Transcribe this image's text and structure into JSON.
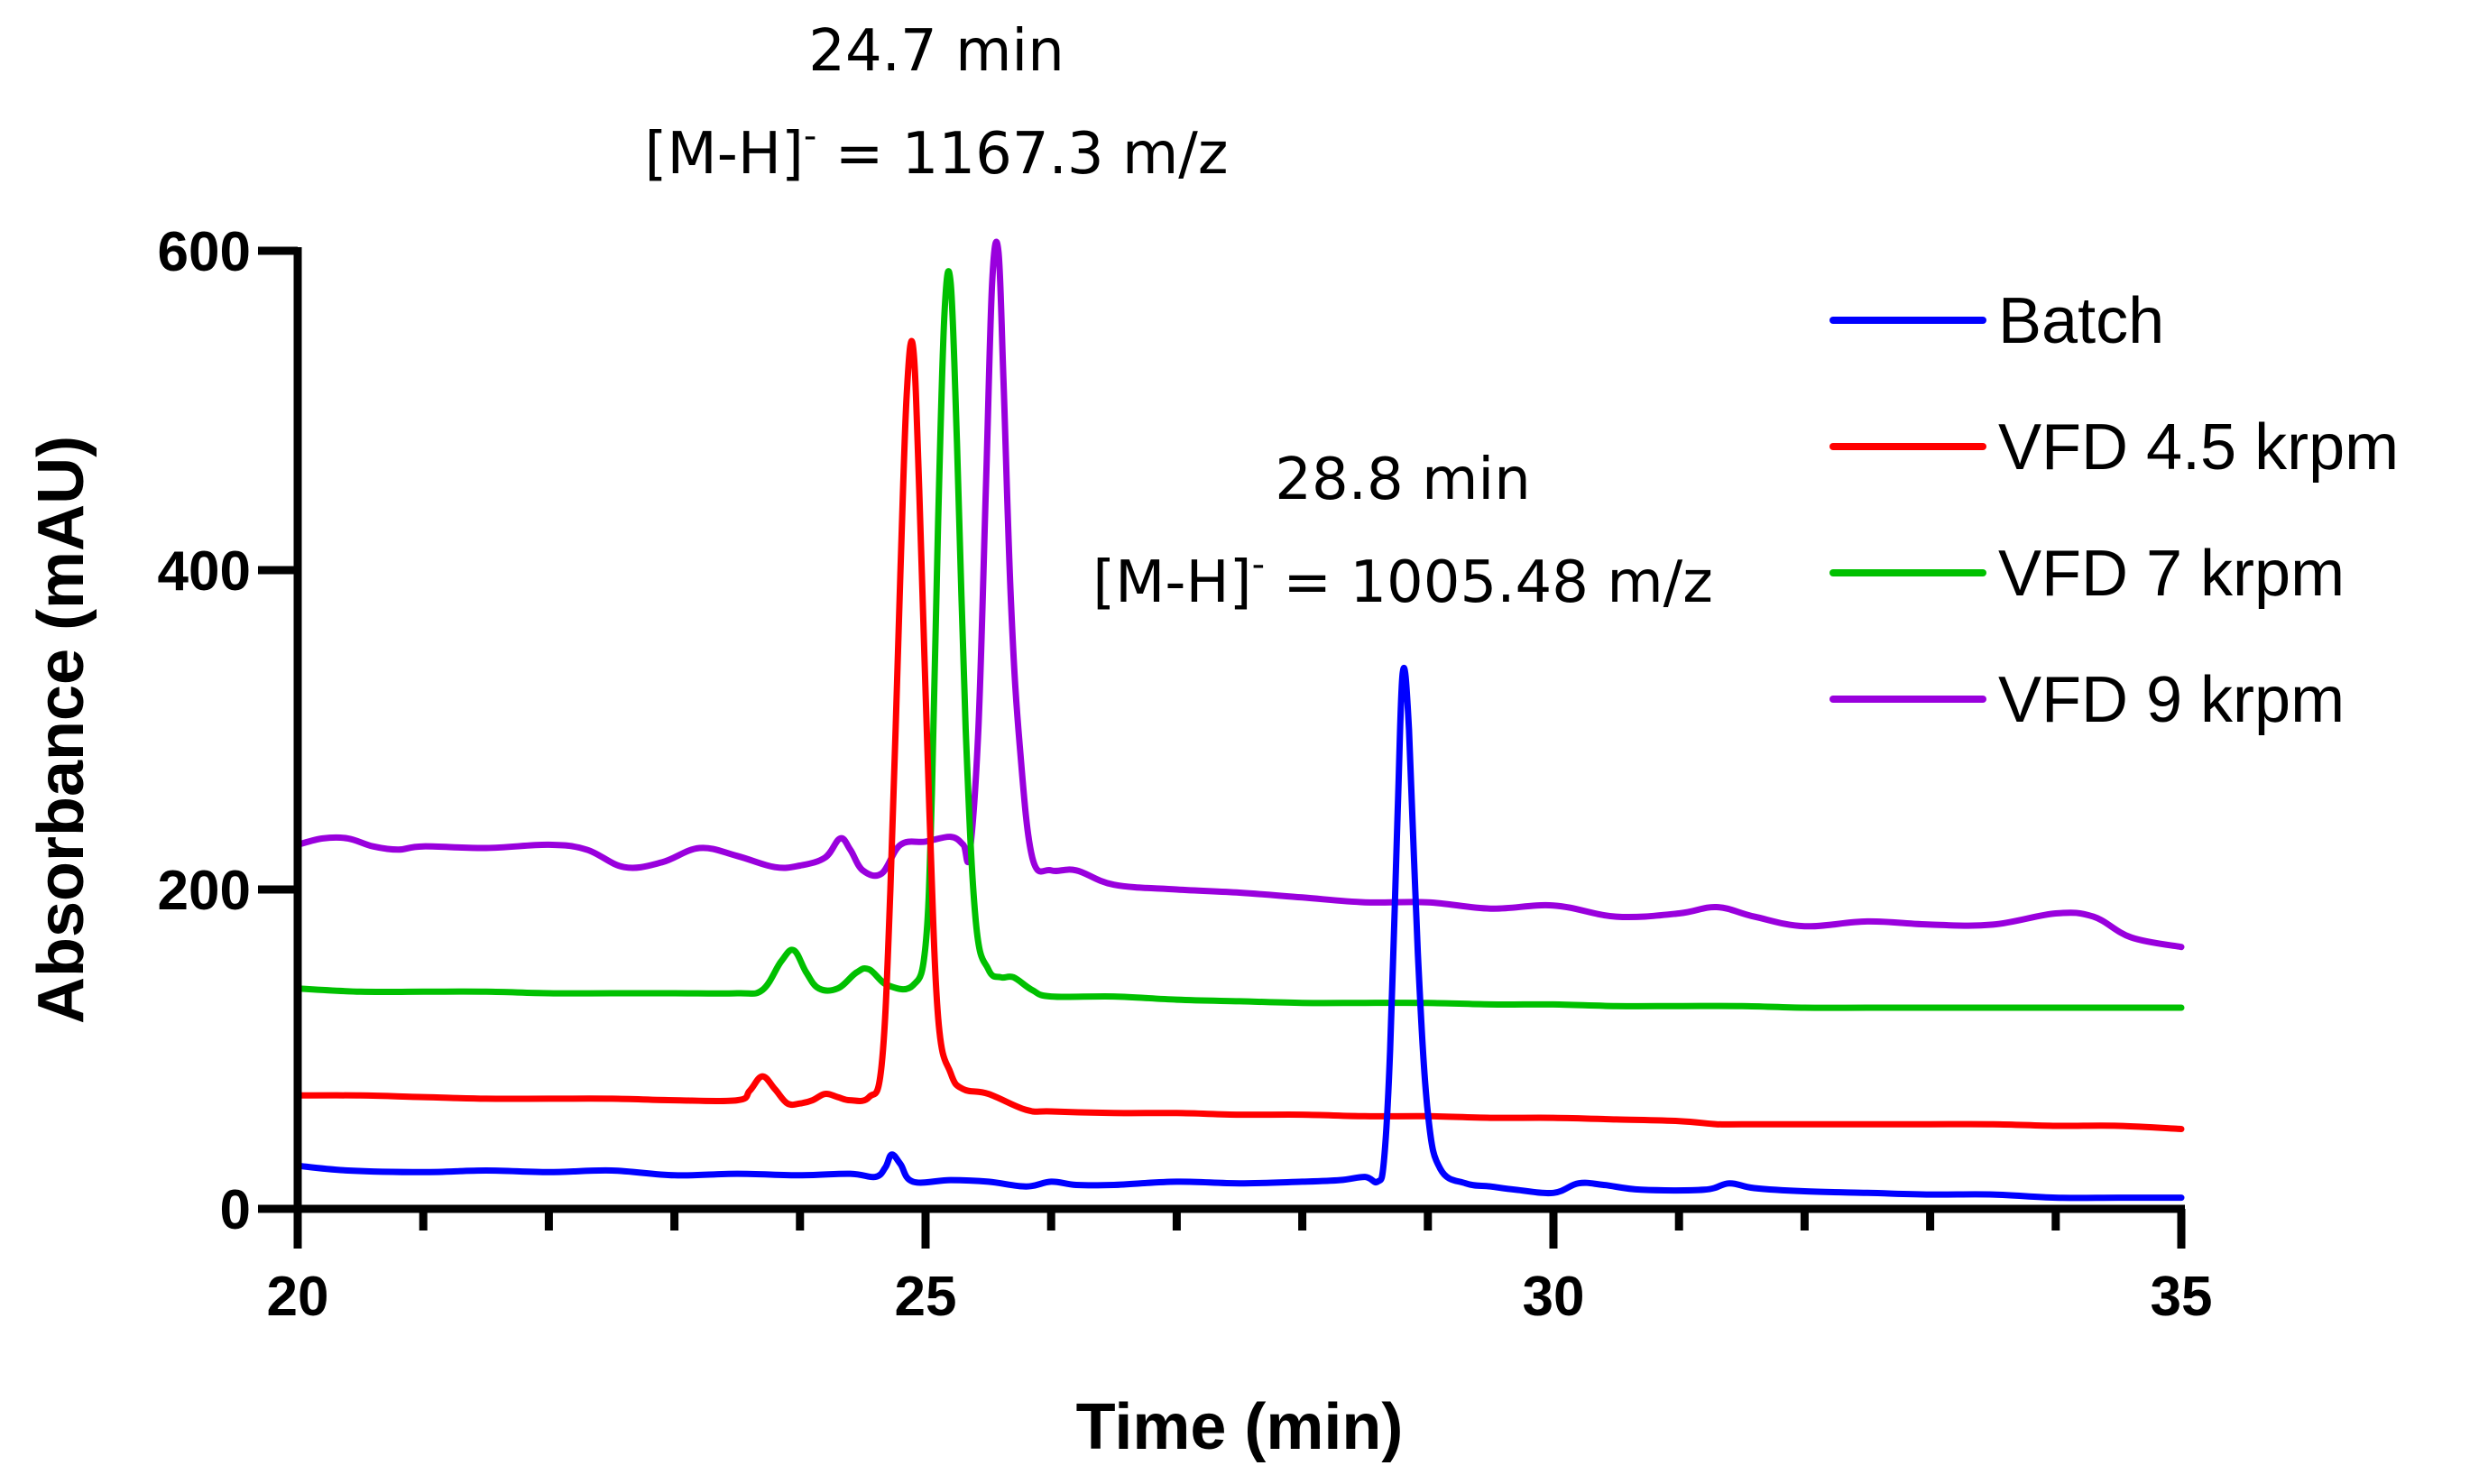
{
  "chart_data": {
    "type": "line",
    "title": "",
    "xlabel": "Time (min)",
    "ylabel": "Absorbance (mAU)",
    "xlim": [
      20,
      35
    ],
    "ylim": [
      0,
      600
    ],
    "x_ticks": [
      20,
      25,
      30,
      35
    ],
    "x_tick_labels": [
      "20",
      "25",
      "30",
      "35"
    ],
    "y_ticks": [
      0,
      200,
      400,
      600
    ],
    "y_tick_labels": [
      "0",
      "200",
      "400",
      "600"
    ],
    "x_minor_step": 1,
    "grid": false,
    "legend_position": "top-right",
    "series": [
      {
        "name": "Batch",
        "color": "#0000ff",
        "points": [
          [
            20,
            27
          ],
          [
            20.4,
            24
          ],
          [
            21,
            23
          ],
          [
            21.5,
            24
          ],
          [
            22,
            23
          ],
          [
            22.5,
            24
          ],
          [
            23,
            21
          ],
          [
            23.5,
            22
          ],
          [
            24,
            21
          ],
          [
            24.4,
            22
          ],
          [
            24.6,
            20
          ],
          [
            24.68,
            26
          ],
          [
            24.73,
            34
          ],
          [
            24.8,
            28
          ],
          [
            24.9,
            17
          ],
          [
            25.2,
            18
          ],
          [
            25.5,
            17
          ],
          [
            25.8,
            14
          ],
          [
            26,
            17
          ],
          [
            26.2,
            15
          ],
          [
            26.5,
            15
          ],
          [
            27,
            17
          ],
          [
            27.5,
            16
          ],
          [
            28,
            17
          ],
          [
            28.3,
            18
          ],
          [
            28.5,
            20
          ],
          [
            28.6,
            17
          ],
          [
            28.65,
            30
          ],
          [
            28.7,
            100
          ],
          [
            28.76,
            250
          ],
          [
            28.8,
            336
          ],
          [
            28.85,
            300
          ],
          [
            28.92,
            160
          ],
          [
            29,
            60
          ],
          [
            29.1,
            25
          ],
          [
            29.3,
            16
          ],
          [
            29.5,
            14
          ],
          [
            29.7,
            12
          ],
          [
            30,
            10
          ],
          [
            30.2,
            16
          ],
          [
            30.4,
            15
          ],
          [
            30.7,
            12
          ],
          [
            31.2,
            12
          ],
          [
            31.4,
            16
          ],
          [
            31.6,
            13
          ],
          [
            32,
            11
          ],
          [
            32.5,
            10
          ],
          [
            33,
            9
          ],
          [
            33.5,
            9
          ],
          [
            34,
            7
          ],
          [
            34.5,
            7
          ],
          [
            35,
            7
          ]
        ]
      },
      {
        "name": "VFD 4.5 krpm",
        "color": "#ff0000",
        "points": [
          [
            20,
            71
          ],
          [
            20.5,
            71
          ],
          [
            21,
            70
          ],
          [
            21.5,
            69
          ],
          [
            22,
            69
          ],
          [
            22.5,
            69
          ],
          [
            23,
            68
          ],
          [
            23.5,
            68
          ],
          [
            23.6,
            74
          ],
          [
            23.7,
            83
          ],
          [
            23.8,
            75
          ],
          [
            23.9,
            66
          ],
          [
            24,
            66
          ],
          [
            24.1,
            68
          ],
          [
            24.2,
            72
          ],
          [
            24.3,
            70
          ],
          [
            24.4,
            68
          ],
          [
            24.55,
            70
          ],
          [
            24.65,
            90
          ],
          [
            24.72,
            200
          ],
          [
            24.8,
            400
          ],
          [
            24.85,
            510
          ],
          [
            24.9,
            540
          ],
          [
            24.95,
            450
          ],
          [
            25.03,
            250
          ],
          [
            25.1,
            120
          ],
          [
            25.2,
            85
          ],
          [
            25.3,
            75
          ],
          [
            25.5,
            72
          ],
          [
            25.8,
            62
          ],
          [
            26,
            61
          ],
          [
            26.5,
            60
          ],
          [
            27,
            60
          ],
          [
            27.5,
            59
          ],
          [
            28,
            59
          ],
          [
            28.5,
            58
          ],
          [
            29,
            58
          ],
          [
            29.5,
            57
          ],
          [
            30,
            57
          ],
          [
            30.5,
            56
          ],
          [
            31,
            55
          ],
          [
            31.3,
            53
          ],
          [
            31.5,
            53
          ],
          [
            32,
            53
          ],
          [
            32.5,
            53
          ],
          [
            33,
            53
          ],
          [
            33.5,
            53
          ],
          [
            34,
            52
          ],
          [
            34.5,
            52
          ],
          [
            35,
            50
          ]
        ]
      },
      {
        "name": "VFD 7 krpm",
        "color": "#00c000",
        "points": [
          [
            20,
            138
          ],
          [
            20.5,
            136
          ],
          [
            21,
            136
          ],
          [
            21.5,
            136
          ],
          [
            22,
            135
          ],
          [
            22.5,
            135
          ],
          [
            23,
            135
          ],
          [
            23.5,
            135
          ],
          [
            23.7,
            137
          ],
          [
            23.85,
            155
          ],
          [
            23.95,
            162
          ],
          [
            24.05,
            148
          ],
          [
            24.15,
            138
          ],
          [
            24.3,
            138
          ],
          [
            24.45,
            148
          ],
          [
            24.55,
            150
          ],
          [
            24.7,
            140
          ],
          [
            24.9,
            140
          ],
          [
            25.0,
            165
          ],
          [
            25.05,
            260
          ],
          [
            25.1,
            430
          ],
          [
            25.15,
            560
          ],
          [
            25.2,
            580
          ],
          [
            25.25,
            480
          ],
          [
            25.32,
            300
          ],
          [
            25.4,
            180
          ],
          [
            25.5,
            150
          ],
          [
            25.6,
            145
          ],
          [
            25.7,
            145
          ],
          [
            25.85,
            137
          ],
          [
            26,
            133
          ],
          [
            26.5,
            133
          ],
          [
            27,
            131
          ],
          [
            27.5,
            130
          ],
          [
            28,
            129
          ],
          [
            28.5,
            129
          ],
          [
            29,
            129
          ],
          [
            29.5,
            128
          ],
          [
            30,
            128
          ],
          [
            30.5,
            127
          ],
          [
            31,
            127
          ],
          [
            31.5,
            127
          ],
          [
            32,
            126
          ],
          [
            32.5,
            126
          ],
          [
            33,
            126
          ],
          [
            33.5,
            126
          ],
          [
            34,
            126
          ],
          [
            34.5,
            126
          ],
          [
            35,
            126
          ]
        ]
      },
      {
        "name": "VFD 9 krpm",
        "color": "#9900dd",
        "points": [
          [
            20,
            228
          ],
          [
            20.2,
            232
          ],
          [
            20.4,
            232
          ],
          [
            20.6,
            227
          ],
          [
            20.8,
            225
          ],
          [
            21,
            227
          ],
          [
            21.5,
            226
          ],
          [
            22,
            228
          ],
          [
            22.3,
            225
          ],
          [
            22.6,
            214
          ],
          [
            22.9,
            217
          ],
          [
            23.2,
            226
          ],
          [
            23.5,
            221
          ],
          [
            23.8,
            214
          ],
          [
            24,
            215
          ],
          [
            24.2,
            220
          ],
          [
            24.32,
            232
          ],
          [
            24.4,
            225
          ],
          [
            24.5,
            212
          ],
          [
            24.65,
            210
          ],
          [
            24.8,
            228
          ],
          [
            25,
            230
          ],
          [
            25.2,
            233
          ],
          [
            25.3,
            228
          ],
          [
            25.35,
            222
          ],
          [
            25.42,
            300
          ],
          [
            25.48,
            450
          ],
          [
            25.53,
            580
          ],
          [
            25.58,
            600
          ],
          [
            25.62,
            520
          ],
          [
            25.68,
            380
          ],
          [
            25.75,
            290
          ],
          [
            25.85,
            220
          ],
          [
            26,
            212
          ],
          [
            26.2,
            212
          ],
          [
            26.5,
            203
          ],
          [
            27,
            200
          ],
          [
            27.5,
            198
          ],
          [
            28,
            195
          ],
          [
            28.5,
            192
          ],
          [
            29,
            192
          ],
          [
            29.5,
            188
          ],
          [
            30,
            190
          ],
          [
            30.5,
            183
          ],
          [
            31,
            185
          ],
          [
            31.3,
            189
          ],
          [
            31.6,
            183
          ],
          [
            32,
            177
          ],
          [
            32.5,
            180
          ],
          [
            33,
            178
          ],
          [
            33.5,
            178
          ],
          [
            34,
            185
          ],
          [
            34.3,
            183
          ],
          [
            34.6,
            170
          ],
          [
            35,
            164
          ]
        ]
      }
    ],
    "annotations": [
      {
        "line1": "24.7 min",
        "line2_prefix": "[M-H]",
        "line2_sup": "-",
        "line2_suffix": "  = 1167.3 m/z",
        "x": 24.7,
        "y": 637
      },
      {
        "line1": "28.8 min",
        "line2_prefix": "[M-H]",
        "line2_sup": "-",
        "line2_suffix": "  = 1005.48 m/z",
        "x": 28.8,
        "y": 425
      }
    ]
  }
}
